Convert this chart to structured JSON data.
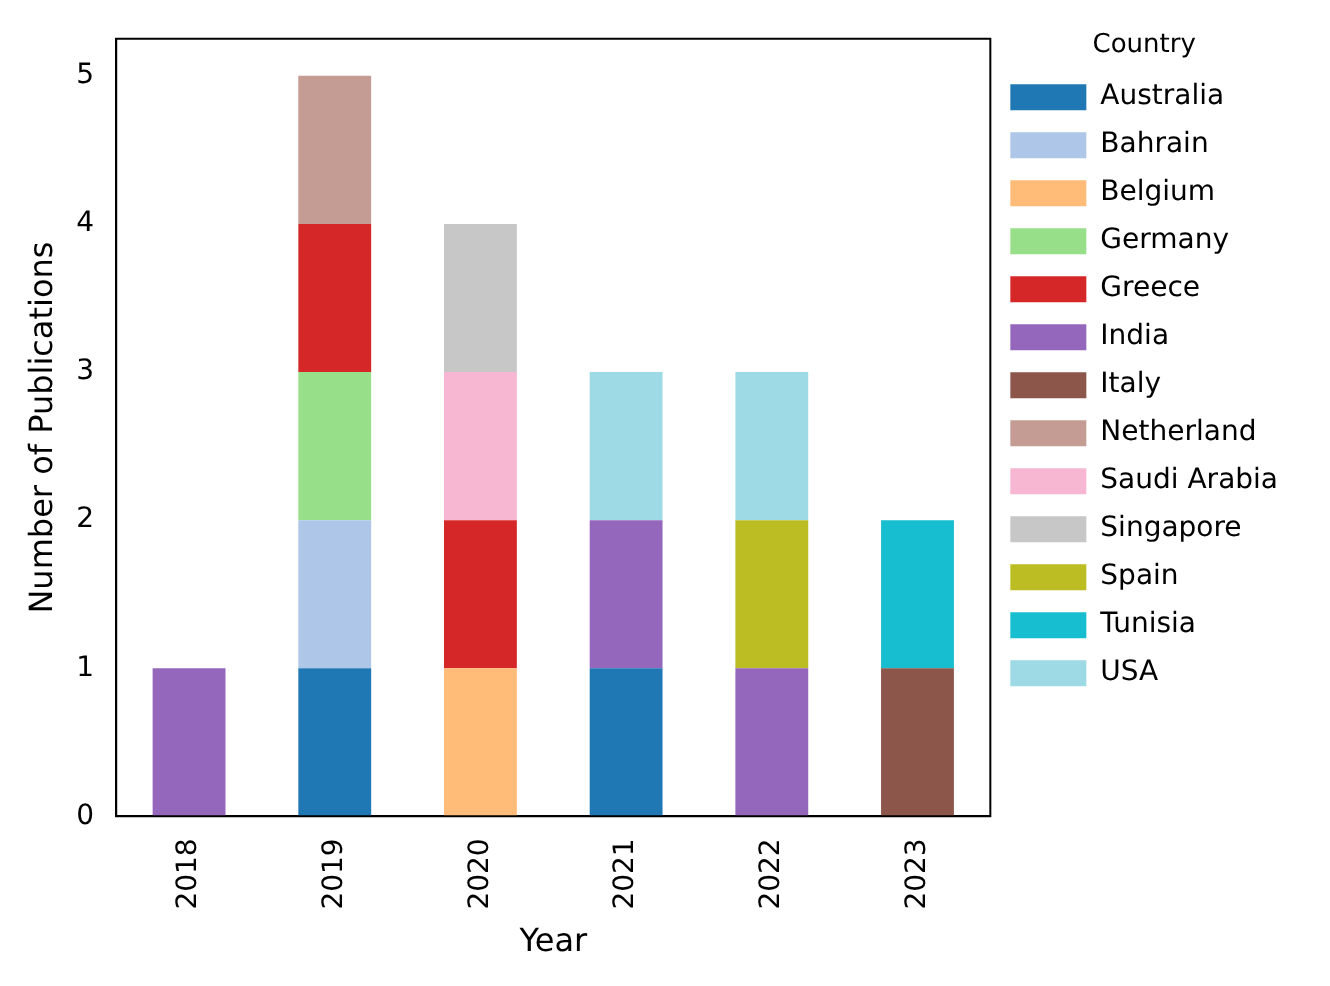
{
  "chart_data": {
    "type": "bar",
    "stacked": true,
    "xlabel": "Year",
    "ylabel": "Number of Publications",
    "legend_title": "Country",
    "legend": "right",
    "grid": false,
    "categories": [
      "2018",
      "2019",
      "2020",
      "2021",
      "2022",
      "2023"
    ],
    "ylim": [
      0,
      5.25
    ],
    "yticks": [
      0,
      1,
      2,
      3,
      4,
      5
    ],
    "series": [
      {
        "name": "Australia",
        "color": "#1f77b4",
        "values": [
          null,
          1,
          null,
          1,
          null,
          null
        ]
      },
      {
        "name": "Bahrain",
        "color": "#aec7e8",
        "values": [
          null,
          1,
          null,
          null,
          null,
          null
        ]
      },
      {
        "name": "Belgium",
        "color": "#ffbb78",
        "values": [
          null,
          null,
          1,
          null,
          null,
          null
        ]
      },
      {
        "name": "Germany",
        "color": "#98df8a",
        "values": [
          null,
          1,
          null,
          null,
          null,
          null
        ]
      },
      {
        "name": "Greece",
        "color": "#d62728",
        "values": [
          null,
          1,
          1,
          null,
          null,
          null
        ]
      },
      {
        "name": "India",
        "color": "#9467bd",
        "values": [
          1,
          null,
          null,
          1,
          1,
          null
        ]
      },
      {
        "name": "Italy",
        "color": "#8c564b",
        "values": [
          null,
          null,
          null,
          null,
          null,
          1
        ]
      },
      {
        "name": "Netherland",
        "color": "#c49c94",
        "values": [
          null,
          1,
          null,
          null,
          null,
          null
        ]
      },
      {
        "name": "Saudi Arabia",
        "color": "#f7b6d2",
        "values": [
          null,
          null,
          1,
          null,
          null,
          null
        ]
      },
      {
        "name": "Singapore",
        "color": "#c7c7c7",
        "values": [
          null,
          null,
          1,
          null,
          null,
          null
        ]
      },
      {
        "name": "Spain",
        "color": "#bcbd22",
        "values": [
          null,
          null,
          null,
          null,
          1,
          null
        ]
      },
      {
        "name": "Tunisia",
        "color": "#17becf",
        "values": [
          null,
          null,
          null,
          null,
          null,
          1
        ]
      },
      {
        "name": "USA",
        "color": "#9edae5",
        "values": [
          null,
          null,
          null,
          1,
          1,
          null
        ]
      }
    ]
  }
}
